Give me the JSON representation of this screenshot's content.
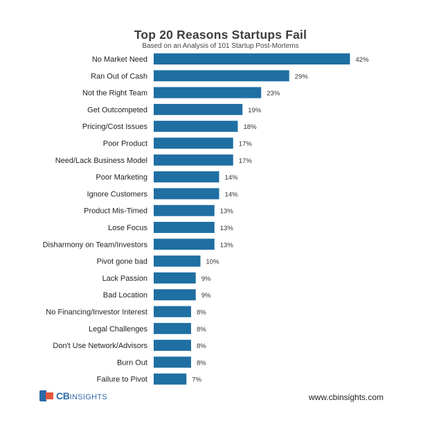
{
  "header": {
    "title": "Top 20 Reasons Startups Fail",
    "subtitle": "Based on an Analysis of 101 Startup Post-Mortems"
  },
  "chart_data": {
    "type": "bar",
    "orientation": "horizontal",
    "title": "Top 20 Reasons Startups Fail",
    "subtitle": "Based on an Analysis of 101 Startup Post-Mortems",
    "xlabel": "",
    "ylabel": "",
    "grid": false,
    "bar_color": "#1f6fa3",
    "categories": [
      "No Market Need",
      "Ran Out of Cash",
      "Not the Right Team",
      "Get Outcompeted",
      "Pricing/Cost Issues",
      "Poor Product",
      "Need/Lack Business Model",
      "Poor Marketing",
      "Ignore Customers",
      "Product Mis-Timed",
      "Lose Focus",
      "Disharmony on Team/Investors",
      "Pivot gone bad",
      "Lack Passion",
      "Bad Location",
      "No Financing/Investor Interest",
      "Legal Challenges",
      "Don't Use Network/Advisors",
      "Burn Out",
      "Failure to Pivot"
    ],
    "values": [
      42,
      29,
      23,
      19,
      18,
      17,
      17,
      14,
      14,
      13,
      13,
      13,
      10,
      9,
      9,
      8,
      8,
      8,
      8,
      7
    ],
    "value_labels": [
      "42%",
      "29%",
      "23%",
      "19%",
      "18%",
      "17%",
      "17%",
      "14%",
      "14%",
      "13%",
      "13%",
      "13%",
      "10%",
      "9%",
      "9%",
      "8%",
      "8%",
      "8%",
      "8%",
      "7%"
    ]
  },
  "footer": {
    "logo_main": "CB",
    "logo_sub": "INSIGHTS",
    "website": "www.cbinsights.com"
  }
}
